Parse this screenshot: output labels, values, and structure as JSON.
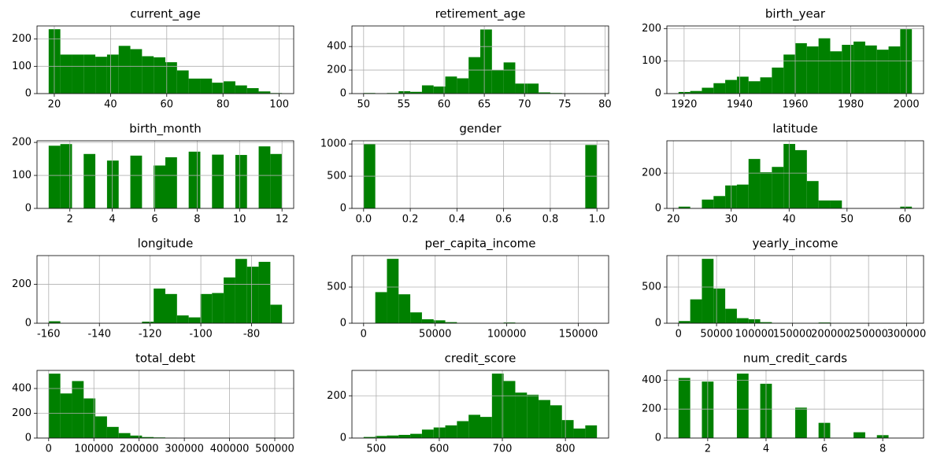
{
  "chart_data": [
    {
      "type": "histogram",
      "title": "current_age",
      "color": "#008000",
      "grid": true,
      "bins": [
        18,
        22.15,
        26.3,
        30.45,
        34.6,
        38.75,
        42.9,
        47.05,
        51.2,
        55.35,
        59.5,
        63.65,
        67.8,
        71.95,
        76.1,
        80.25,
        84.4,
        88.55,
        92.7,
        96.85,
        101
      ],
      "values": [
        236,
        143,
        143,
        143,
        135,
        143,
        175,
        163,
        137,
        133,
        115,
        85,
        55,
        55,
        40,
        45,
        30,
        20,
        8,
        2
      ],
      "xlim": [
        13.85,
        105.15
      ],
      "ylim": [
        0,
        248
      ],
      "xticks": [
        20,
        40,
        60,
        80,
        100
      ],
      "yticks": [
        0,
        100,
        200
      ]
    },
    {
      "type": "histogram",
      "title": "retirement_age",
      "color": "#008000",
      "grid": true,
      "bins": [
        50,
        51.45,
        52.9,
        54.35,
        55.8,
        57.25,
        58.7,
        60.15,
        61.6,
        63.05,
        64.5,
        65.95,
        67.4,
        68.85,
        70.3,
        71.75,
        73.2,
        74.65,
        76.1,
        77.55,
        79
      ],
      "values": [
        5,
        3,
        5,
        20,
        15,
        70,
        60,
        145,
        130,
        310,
        545,
        200,
        265,
        85,
        85,
        10,
        5,
        3,
        2,
        1
      ],
      "xlim": [
        48.55,
        80.45
      ],
      "ylim": [
        0,
        575
      ],
      "xticks": [
        50,
        55,
        60,
        65,
        70,
        75,
        80
      ],
      "yticks": [
        0,
        200,
        400
      ]
    },
    {
      "type": "histogram",
      "title": "birth_year",
      "color": "#008000",
      "grid": true,
      "bins": [
        1918,
        1922.2,
        1926.4,
        1930.6,
        1934.8,
        1939,
        1943.2,
        1947.4,
        1951.6,
        1955.8,
        1960,
        1964.2,
        1968.4,
        1972.6,
        1976.8,
        1981,
        1985.2,
        1989.4,
        1993.6,
        1997.8,
        2002
      ],
      "values": [
        5,
        8,
        18,
        32,
        42,
        52,
        38,
        50,
        80,
        120,
        155,
        145,
        170,
        130,
        150,
        160,
        148,
        135,
        145,
        198
      ],
      "xlim": [
        1913.8,
        2006.2
      ],
      "ylim": [
        0,
        208
      ],
      "xticks": [
        1920,
        1940,
        1960,
        1980,
        2000
      ],
      "yticks": [
        0,
        100,
        200
      ]
    },
    {
      "type": "histogram",
      "title": "birth_month",
      "color": "#008000",
      "grid": true,
      "bins": [
        1,
        1.55,
        2.1,
        2.65,
        3.2,
        3.75,
        4.3,
        4.85,
        5.4,
        5.95,
        6.5,
        7.05,
        7.6,
        8.15,
        8.7,
        9.25,
        9.8,
        10.35,
        10.9,
        11.45,
        12
      ],
      "values": [
        190,
        195,
        0,
        165,
        0,
        145,
        0,
        160,
        0,
        130,
        155,
        0,
        172,
        0,
        163,
        0,
        162,
        0,
        188,
        165
      ],
      "xlim": [
        0.45,
        12.55
      ],
      "ylim": [
        0,
        205
      ],
      "xticks": [
        2,
        4,
        6,
        8,
        10,
        12
      ],
      "yticks": [
        0,
        100,
        200
      ]
    },
    {
      "type": "histogram",
      "title": "gender",
      "color": "#008000",
      "grid": true,
      "bins": [
        0,
        0.05,
        0.1,
        0.15,
        0.2,
        0.25,
        0.3,
        0.35,
        0.4,
        0.45,
        0.5,
        0.55,
        0.6,
        0.65,
        0.7,
        0.75,
        0.8,
        0.85,
        0.9,
        0.95,
        1
      ],
      "values": [
        1000,
        0,
        0,
        0,
        0,
        0,
        0,
        0,
        0,
        0,
        0,
        0,
        0,
        0,
        0,
        0,
        0,
        0,
        0,
        985
      ],
      "xlim": [
        -0.05,
        1.05
      ],
      "ylim": [
        0,
        1050
      ],
      "xticks": [
        {
          "value": 0,
          "label": "0.0"
        },
        0.2,
        0.4,
        0.6,
        0.8,
        {
          "value": 1,
          "label": "1.0"
        }
      ],
      "yticks": [
        0,
        500,
        1000
      ]
    },
    {
      "type": "histogram",
      "title": "latitude",
      "color": "#008000",
      "grid": true,
      "bins": [
        20.9,
        22.915,
        24.93,
        26.945,
        28.96,
        30.975,
        32.99,
        35.005,
        37.02,
        39.035,
        41.05,
        43.065,
        45.08,
        47.095,
        49.11,
        51.125,
        53.14,
        55.155,
        57.17,
        59.185,
        61.2
      ],
      "values": [
        10,
        0,
        50,
        70,
        130,
        135,
        280,
        205,
        235,
        365,
        330,
        155,
        45,
        45,
        0,
        0,
        0,
        0,
        0,
        10
      ],
      "xlim": [
        18.885,
        63.215
      ],
      "ylim": [
        0,
        383
      ],
      "xticks": [
        20,
        30,
        40,
        50,
        60
      ],
      "yticks": [
        0,
        200
      ]
    },
    {
      "type": "histogram",
      "title": "longitude",
      "color": "#008000",
      "grid": true,
      "bins": [
        -160,
        -155.4,
        -150.8,
        -146.2,
        -141.6,
        -137,
        -132.4,
        -127.8,
        -123.2,
        -118.6,
        -114,
        -109.4,
        -104.8,
        -100.2,
        -95.6,
        -91,
        -86.4,
        -81.8,
        -77.2,
        -72.6,
        -68
      ],
      "values": [
        10,
        0,
        0,
        0,
        0,
        0,
        0,
        0,
        8,
        178,
        150,
        40,
        30,
        150,
        155,
        235,
        330,
        290,
        315,
        95
      ],
      "xlim": [
        -164.6,
        -63.4
      ],
      "ylim": [
        0,
        347
      ],
      "xticks": [
        -160,
        -140,
        -120,
        -100,
        -80
      ],
      "yticks": [
        0,
        200
      ]
    },
    {
      "type": "histogram",
      "title": "per_capita_income",
      "color": "#008000",
      "grid": true,
      "bins": [
        0,
        8150,
        16300,
        24450,
        32600,
        40750,
        48900,
        57050,
        65200,
        73350,
        81500,
        89650,
        97800,
        105950,
        114100,
        122250,
        130400,
        138550,
        146700,
        154850,
        163000
      ],
      "values": [
        5,
        430,
        890,
        400,
        150,
        55,
        40,
        15,
        5,
        5,
        0,
        3,
        10,
        3,
        0,
        0,
        0,
        0,
        0,
        2
      ],
      "xlim": [
        -8150,
        171150
      ],
      "ylim": [
        0,
        935
      ],
      "xticks": [
        0,
        50000,
        100000,
        150000
      ],
      "yticks": [
        0,
        500
      ]
    },
    {
      "type": "histogram",
      "title": "yearly_income",
      "color": "#008000",
      "grid": true,
      "bins": [
        0,
        15350,
        30700,
        46050,
        61400,
        76750,
        92100,
        107450,
        122800,
        138150,
        153500,
        168850,
        184200,
        199550,
        214900,
        230250,
        245600,
        260950,
        276300,
        291650,
        307000
      ],
      "values": [
        30,
        330,
        890,
        480,
        200,
        70,
        55,
        15,
        5,
        5,
        2,
        3,
        10,
        3,
        0,
        0,
        0,
        0,
        0,
        2
      ],
      "xlim": [
        -15350,
        322350
      ],
      "ylim": [
        0,
        935
      ],
      "xticks": [
        0,
        50000,
        100000,
        150000,
        200000,
        250000,
        300000
      ],
      "yticks": [
        0,
        500
      ]
    },
    {
      "type": "histogram",
      "title": "total_debt",
      "color": "#008000",
      "grid": true,
      "bins": [
        0,
        25800,
        51600,
        77400,
        103200,
        129000,
        154800,
        180600,
        206400,
        232200,
        258000,
        283800,
        309600,
        335400,
        361200,
        387000,
        412800,
        438600,
        464400,
        490200,
        516000
      ],
      "values": [
        520,
        360,
        460,
        320,
        175,
        90,
        40,
        20,
        8,
        5,
        3,
        0,
        0,
        0,
        0,
        0,
        0,
        0,
        0,
        2
      ],
      "xlim": [
        -25800,
        541800
      ],
      "ylim": [
        0,
        546
      ],
      "xticks": [
        0,
        100000,
        200000,
        300000,
        400000,
        500000
      ],
      "yticks": [
        0,
        200,
        400
      ]
    },
    {
      "type": "histogram",
      "title": "credit_score",
      "color": "#008000",
      "grid": true,
      "bins": [
        480,
        498.5,
        517,
        535.5,
        554,
        572.5,
        591,
        609.5,
        628,
        646.5,
        665,
        683.5,
        702,
        720.5,
        739,
        757.5,
        776,
        794.5,
        813,
        831.5,
        850
      ],
      "values": [
        5,
        10,
        12,
        15,
        20,
        40,
        50,
        60,
        80,
        110,
        100,
        305,
        270,
        215,
        205,
        180,
        155,
        85,
        45,
        60
      ],
      "xlim": [
        461.5,
        868.5
      ],
      "ylim": [
        0,
        320
      ],
      "xticks": [
        500,
        600,
        700,
        800
      ],
      "yticks": [
        0,
        200
      ]
    },
    {
      "type": "histogram",
      "title": "num_credit_cards",
      "color": "#008000",
      "grid": true,
      "bins": [
        1,
        1.4,
        1.8,
        2.2,
        2.6,
        3,
        3.4,
        3.8,
        4.2,
        4.6,
        5,
        5.4,
        5.8,
        6.2,
        6.6,
        7,
        7.4,
        7.8,
        8.2,
        8.6,
        9
      ],
      "values": [
        415,
        0,
        390,
        0,
        0,
        445,
        0,
        375,
        0,
        0,
        210,
        0,
        105,
        0,
        0,
        40,
        0,
        20,
        0,
        1
      ],
      "xlim": [
        0.6,
        9.4
      ],
      "ylim": [
        0,
        467
      ],
      "xticks": [
        2,
        4,
        6,
        8
      ],
      "yticks": [
        0,
        200,
        400
      ]
    }
  ]
}
